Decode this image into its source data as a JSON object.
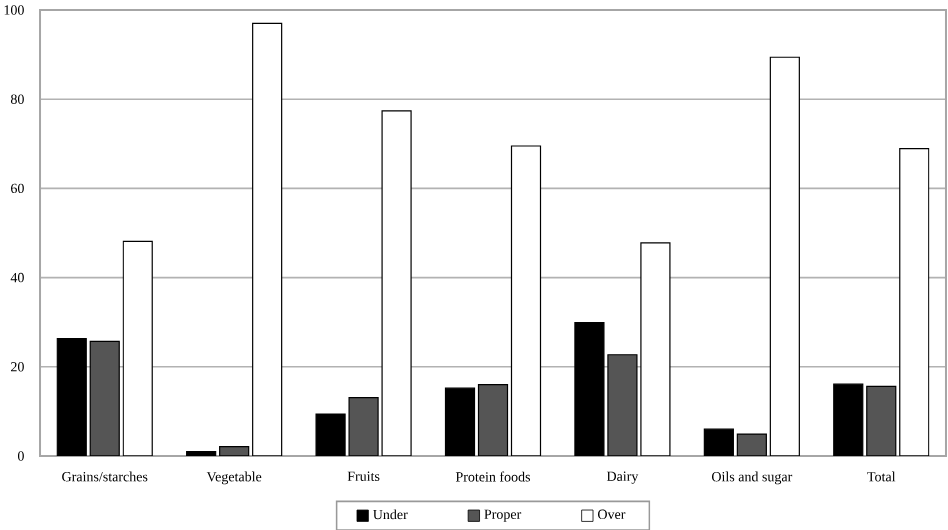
{
  "chart_data": {
    "type": "bar",
    "categories": [
      "Grains/starches",
      "Vegetable",
      "Fruits",
      "Protein foods",
      "Dairy",
      "Oils and sugar",
      "Total"
    ],
    "series": [
      {
        "name": "Under",
        "color": "#000000",
        "values": [
          26.3,
          1.0,
          9.4,
          15.2,
          29.9,
          6.0,
          16.1
        ]
      },
      {
        "name": "Proper",
        "color": "#555555",
        "values": [
          25.7,
          2.1,
          13.1,
          16.0,
          22.7,
          4.9,
          15.6
        ]
      },
      {
        "name": "Over",
        "color": "#ffffff",
        "values": [
          48.1,
          97.0,
          77.4,
          69.5,
          47.8,
          89.4,
          68.9
        ]
      }
    ],
    "ylim": [
      0,
      100
    ],
    "yticks": [
      0,
      20,
      40,
      60,
      80,
      100
    ],
    "grid": "y",
    "legend": "bottom"
  }
}
